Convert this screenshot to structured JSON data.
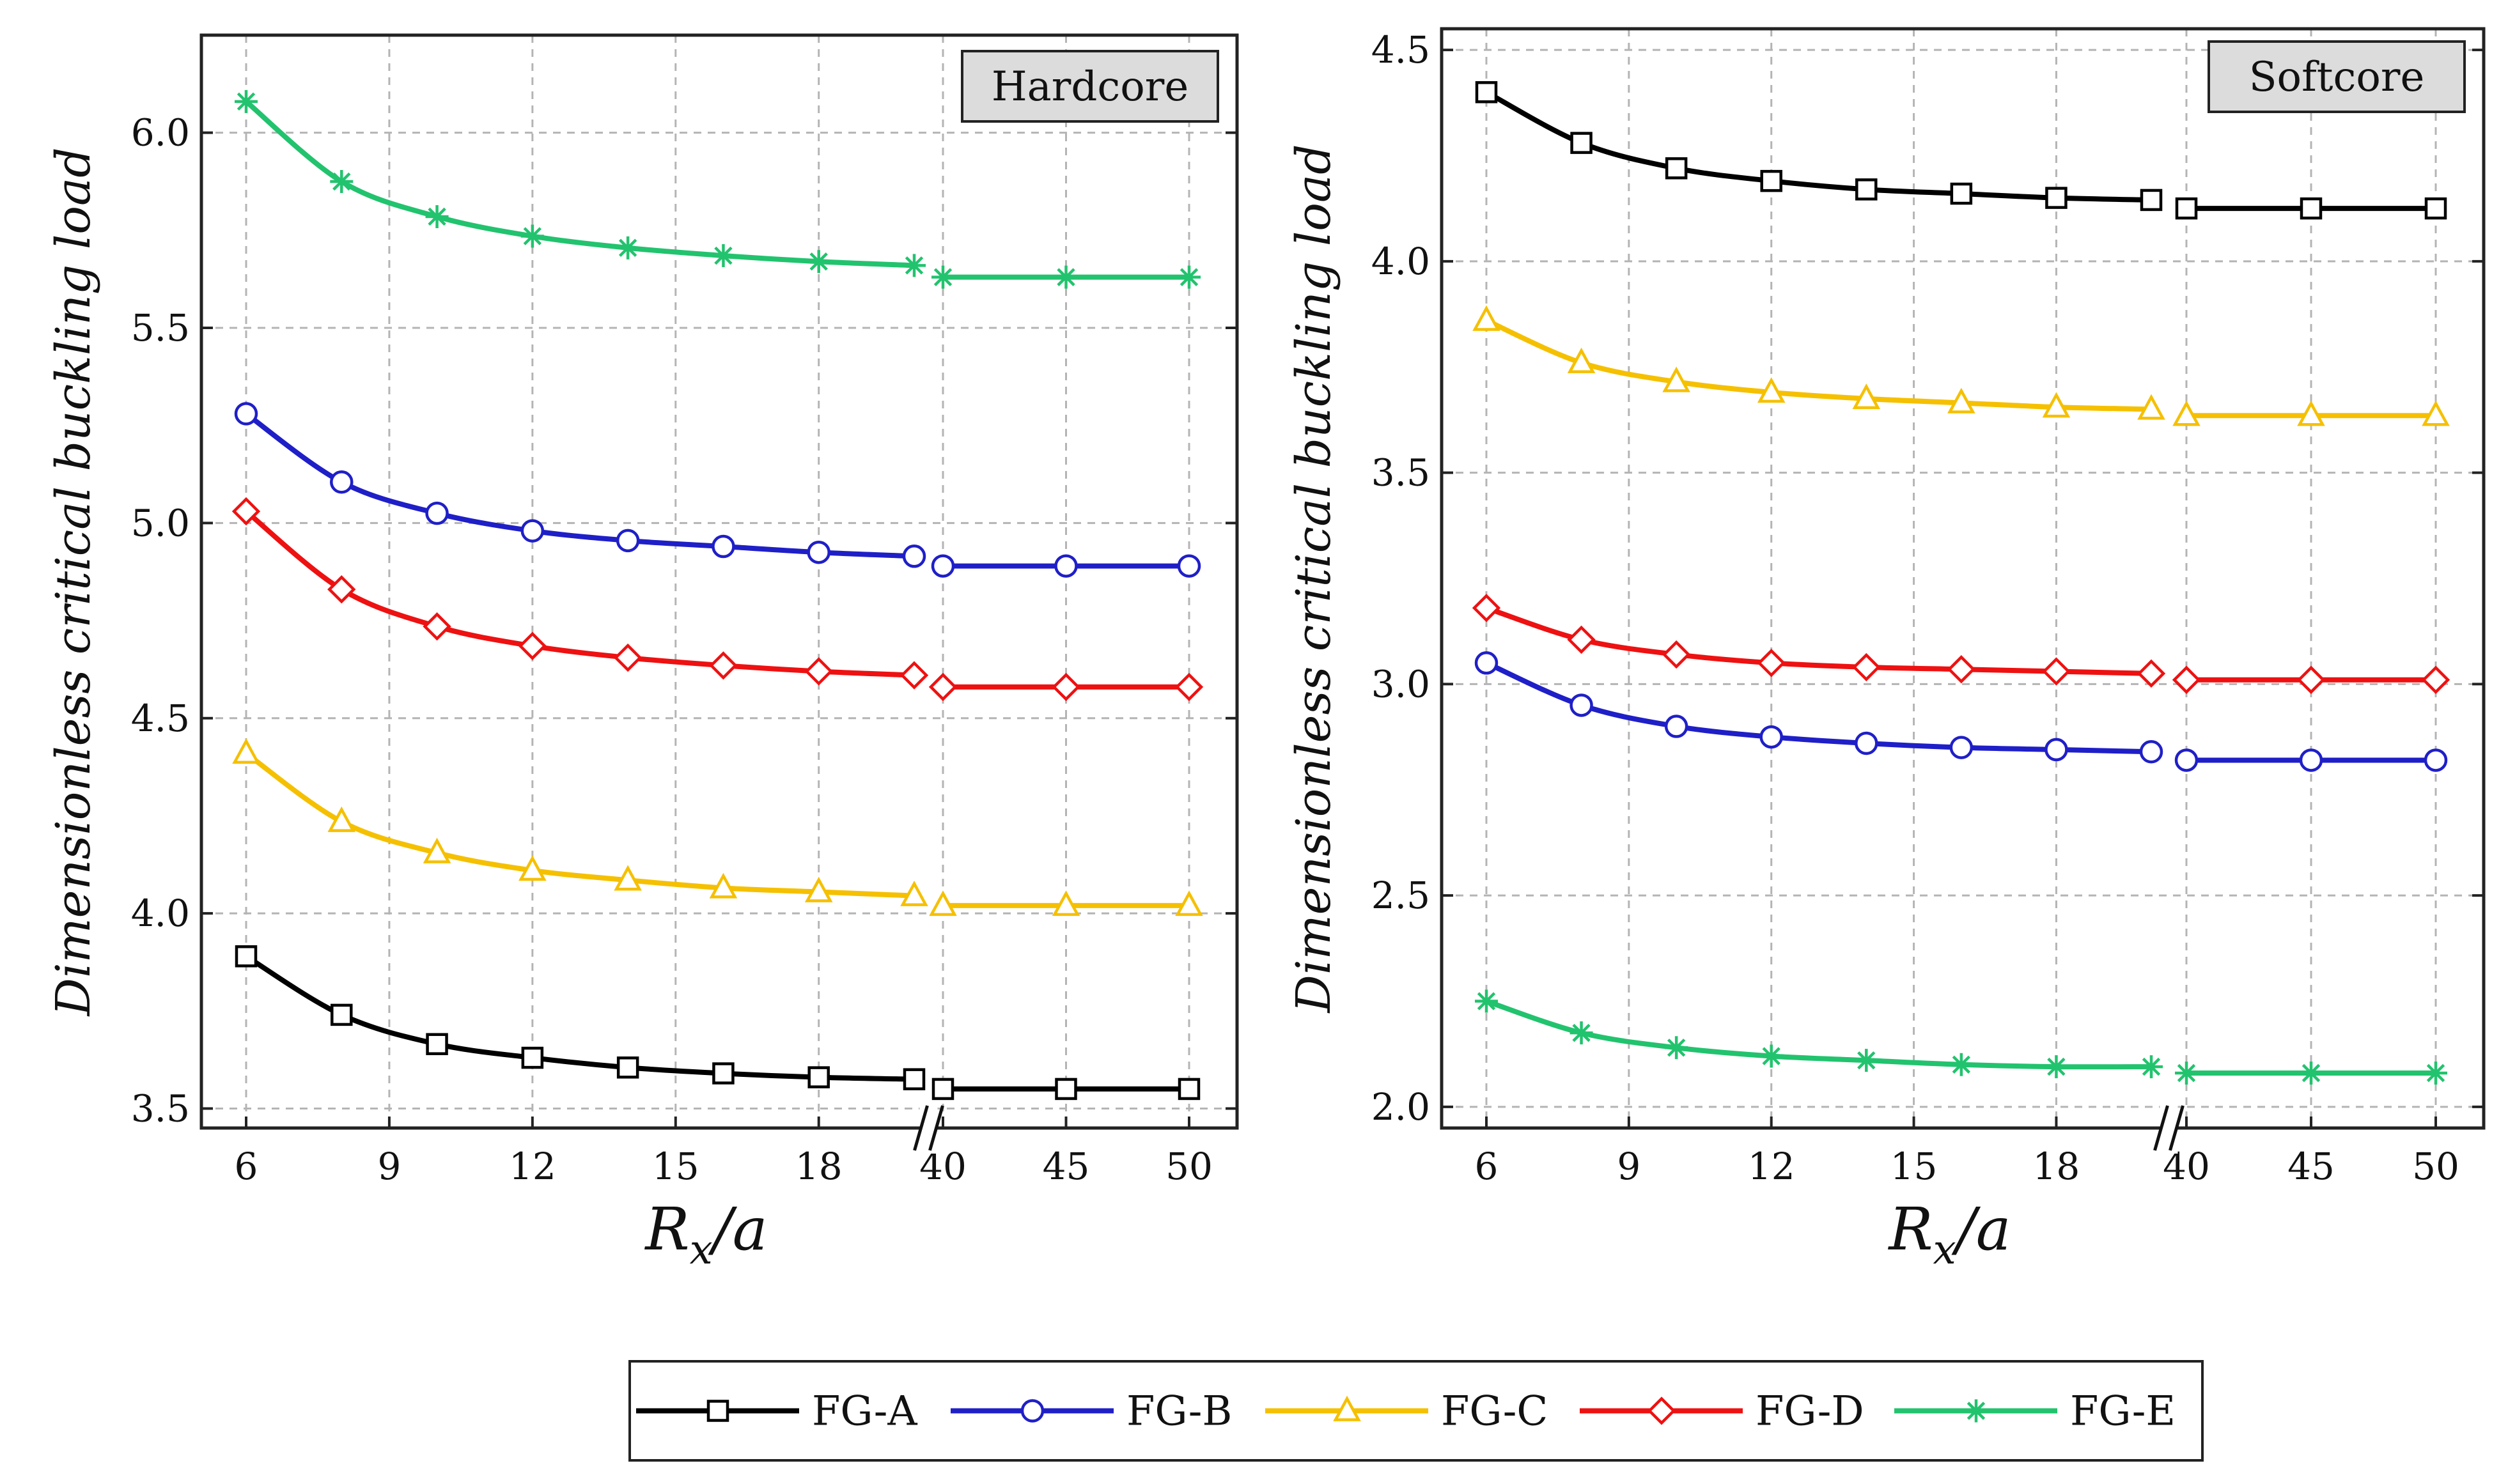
{
  "colors": {
    "FG-A": "#000000",
    "FG-B": "#1f1fc8",
    "FG-C": "#f5c000",
    "FG-D": "#ee1111",
    "FG-E": "#22c36e"
  },
  "chart_data": [
    {
      "type": "line",
      "panel_label": "Hardcore",
      "xlabel": "R_x/a",
      "ylabel": "Dimensionless critical buckling load",
      "ylim": [
        3.45,
        6.25
      ],
      "yticks": [
        "3.5",
        "4.0",
        "4.5",
        "5.0",
        "5.5",
        "6.0"
      ],
      "x_segment1_ticks": [
        "6",
        "9",
        "12",
        "15",
        "18"
      ],
      "x_segment2_ticks": [
        "40",
        "45",
        "50"
      ],
      "broken_axis": true,
      "x": [
        6,
        8,
        10,
        12,
        14,
        16,
        18,
        20,
        40,
        45,
        50
      ],
      "series": [
        {
          "name": "FG-A",
          "marker": "square",
          "values": [
            3.89,
            3.74,
            3.665,
            3.63,
            3.605,
            3.59,
            3.58,
            3.575,
            3.55,
            3.55,
            3.55
          ]
        },
        {
          "name": "FG-B",
          "marker": "circle",
          "values": [
            5.28,
            5.105,
            5.025,
            4.98,
            4.955,
            4.94,
            4.925,
            4.915,
            4.89,
            4.89,
            4.89
          ]
        },
        {
          "name": "FG-C",
          "marker": "triangle",
          "values": [
            4.41,
            4.235,
            4.155,
            4.11,
            4.085,
            4.065,
            4.055,
            4.045,
            4.02,
            4.02,
            4.02
          ]
        },
        {
          "name": "FG-D",
          "marker": "diamond",
          "values": [
            5.03,
            4.83,
            4.735,
            4.685,
            4.655,
            4.635,
            4.62,
            4.61,
            4.58,
            4.58,
            4.58
          ]
        },
        {
          "name": "FG-E",
          "marker": "star",
          "values": [
            6.08,
            5.875,
            5.785,
            5.735,
            5.705,
            5.685,
            5.67,
            5.66,
            5.63,
            5.63,
            5.63
          ]
        }
      ]
    },
    {
      "type": "line",
      "panel_label": "Softcore",
      "xlabel": "R_x/a",
      "ylabel": "Dimensionless critical buckling load",
      "ylim": [
        1.95,
        4.55
      ],
      "yticks": [
        "2.0",
        "2.5",
        "3.0",
        "3.5",
        "4.0",
        "4.5"
      ],
      "x_segment1_ticks": [
        "6",
        "9",
        "12",
        "15",
        "18"
      ],
      "x_segment2_ticks": [
        "40",
        "45",
        "50"
      ],
      "broken_axis": true,
      "x": [
        6,
        8,
        10,
        12,
        14,
        16,
        18,
        20,
        40,
        45,
        50
      ],
      "series": [
        {
          "name": "FG-A",
          "marker": "square",
          "values": [
            4.4,
            4.28,
            4.22,
            4.19,
            4.17,
            4.16,
            4.15,
            4.145,
            4.125,
            4.125,
            4.125
          ]
        },
        {
          "name": "FG-B",
          "marker": "circle",
          "values": [
            3.05,
            2.95,
            2.9,
            2.875,
            2.86,
            2.85,
            2.845,
            2.84,
            2.82,
            2.82,
            2.82
          ]
        },
        {
          "name": "FG-C",
          "marker": "triangle",
          "values": [
            3.86,
            3.76,
            3.715,
            3.69,
            3.675,
            3.665,
            3.655,
            3.65,
            3.635,
            3.635,
            3.635
          ]
        },
        {
          "name": "FG-D",
          "marker": "diamond",
          "values": [
            3.18,
            3.105,
            3.07,
            3.05,
            3.04,
            3.035,
            3.03,
            3.025,
            3.01,
            3.01,
            3.01
          ]
        },
        {
          "name": "FG-E",
          "marker": "star",
          "values": [
            2.25,
            2.175,
            2.14,
            2.12,
            2.11,
            2.1,
            2.095,
            2.095,
            2.08,
            2.08,
            2.08
          ]
        }
      ]
    }
  ],
  "legend": {
    "items": [
      {
        "label": "FG-A",
        "marker": "square"
      },
      {
        "label": "FG-B",
        "marker": "circle"
      },
      {
        "label": "FG-C",
        "marker": "triangle"
      },
      {
        "label": "FG-D",
        "marker": "diamond"
      },
      {
        "label": "FG-E",
        "marker": "star"
      }
    ]
  }
}
